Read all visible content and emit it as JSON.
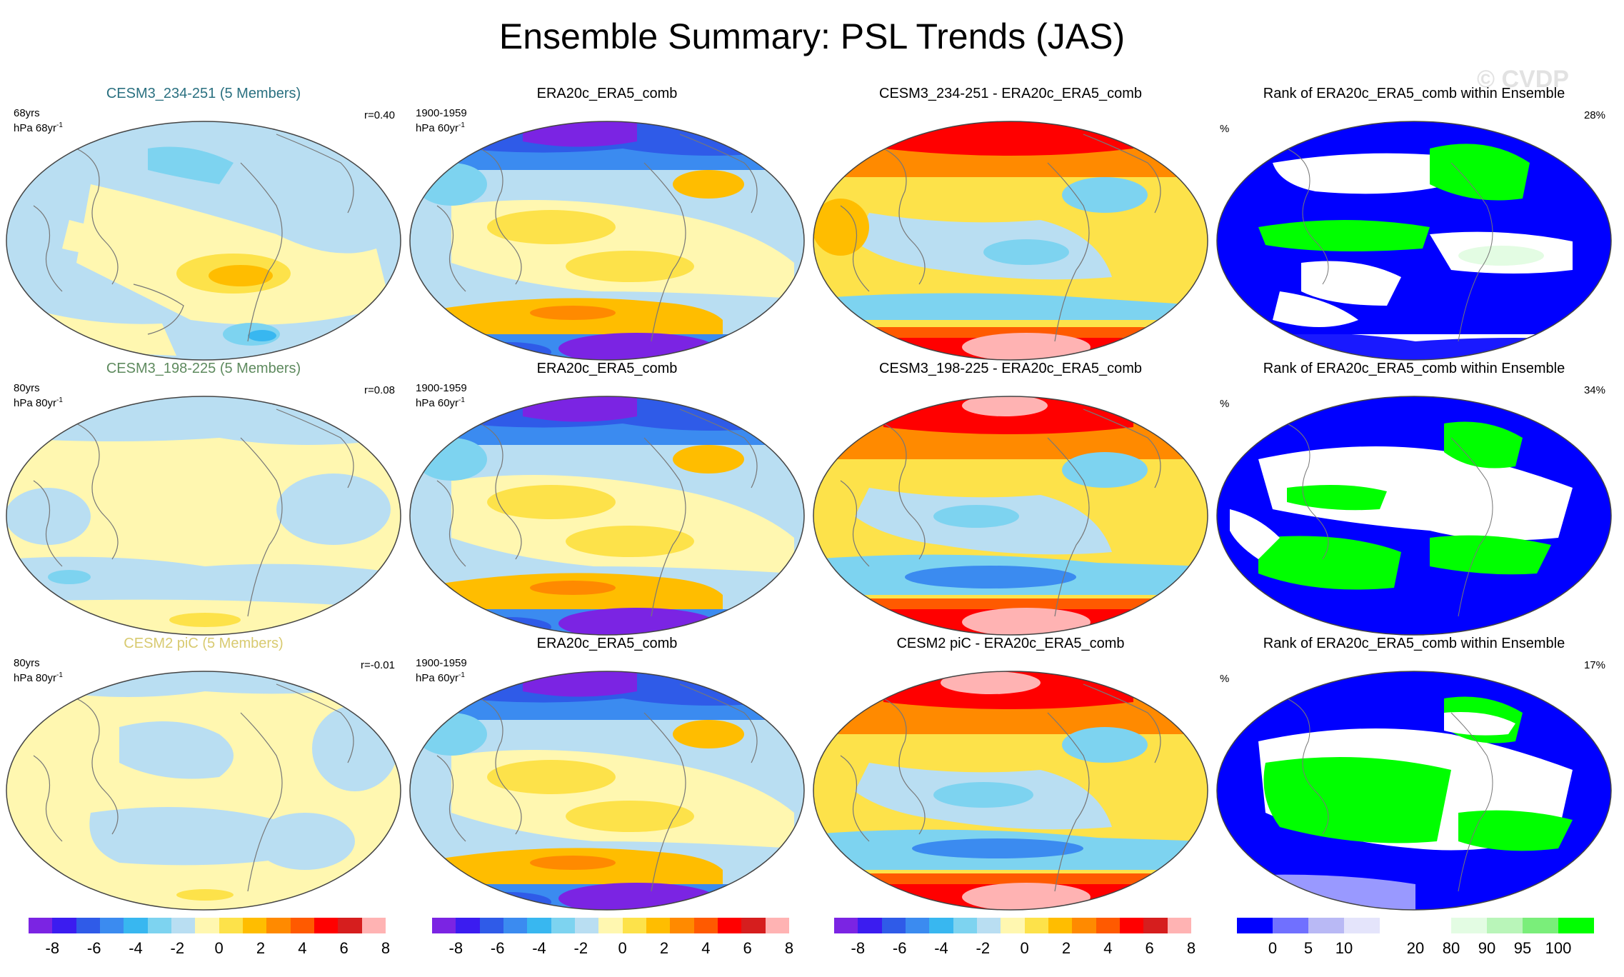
{
  "title": "Ensemble Summary: PSL Trends (JAS)",
  "watermark": "© CVDP",
  "colors": {
    "anom_scale": [
      "#7b24e3",
      "#3b1cf0",
      "#2f5be8",
      "#3b8bf0",
      "#38b7f0",
      "#7dd3f0",
      "#b9def2",
      "#fff7b0",
      "#fde24a",
      "#ffbd00",
      "#ff8a00",
      "#ff5a00",
      "#ff0000",
      "#d61e1e",
      "#ffb3b3"
    ],
    "rank_scale": [
      "#0000ff",
      "#7070ff",
      "#b9b9f5",
      "#e4e4fb",
      "#ffffff",
      "#ffffff",
      "#e3fce3",
      "#b9f5b9",
      "#7aee7a",
      "#00ff00"
    ],
    "model_row1_title": "#2a7080",
    "model_row2_title": "#5e8a5e",
    "model_row3_title": "#d8ca70"
  },
  "rows": [
    {
      "model": {
        "title": "CESM3_234-251 (5 Members)",
        "years": "68yrs",
        "units": "hPa 68yr",
        "units_sup": "-1",
        "corr": "r=0.40"
      },
      "obs": {
        "title": "ERA20c_ERA5_comb",
        "years": "1900-1959",
        "units": "hPa 60yr",
        "units_sup": "-1"
      },
      "diff": {
        "title": "CESM3_234-251 - ERA20c_ERA5_comb"
      },
      "rank": {
        "title": "Rank of ERA20c_ERA5_comb within Ensemble",
        "units": "%",
        "pct": "28%"
      }
    },
    {
      "model": {
        "title": "CESM3_198-225 (5 Members)",
        "years": "80yrs",
        "units": "hPa 80yr",
        "units_sup": "-1",
        "corr": "r=0.08"
      },
      "obs": {
        "title": "ERA20c_ERA5_comb",
        "years": "1900-1959",
        "units": "hPa 60yr",
        "units_sup": "-1"
      },
      "diff": {
        "title": "CESM3_198-225 - ERA20c_ERA5_comb"
      },
      "rank": {
        "title": "Rank of ERA20c_ERA5_comb within Ensemble",
        "units": "%",
        "pct": "34%"
      }
    },
    {
      "model": {
        "title": "CESM2 piC (5 Members)",
        "years": "80yrs",
        "units": "hPa 80yr",
        "units_sup": "-1",
        "corr": "r=-0.01"
      },
      "obs": {
        "title": "ERA20c_ERA5_comb",
        "years": "1900-1959",
        "units": "hPa 60yr",
        "units_sup": "-1"
      },
      "diff": {
        "title": "CESM2 piC - ERA20c_ERA5_comb"
      },
      "rank": {
        "title": "Rank of ERA20c_ERA5_comb within Ensemble",
        "units": "%",
        "pct": "17%"
      }
    }
  ],
  "colorbars": {
    "anom_labels": [
      "-8",
      "-6",
      "-4",
      "-2",
      "0",
      "2",
      "4",
      "6",
      "8"
    ],
    "rank_labels": [
      "0",
      "5",
      "10",
      "20",
      "80",
      "90",
      "95",
      "100"
    ]
  }
}
